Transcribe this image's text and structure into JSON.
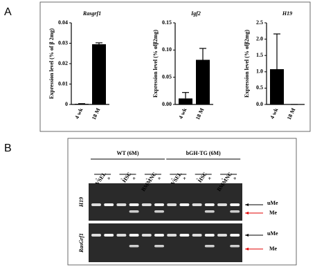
{
  "panel_a": {
    "label": "A"
  },
  "chart_data": [
    {
      "type": "bar",
      "title": "Rasgrf1",
      "y_label": "Expression level (% of  β 2mg)",
      "categories": [
        "4 wk",
        "18 M"
      ],
      "values": [
        0.0003,
        0.0295
      ],
      "errors": [
        0.0001,
        0.0007
      ],
      "color": "#000000",
      "ylim": [
        0,
        0.04
      ],
      "yticks": [
        0,
        0.01,
        0.02,
        0.03,
        0.04
      ]
    },
    {
      "type": "bar",
      "title": "Igf2",
      "y_label": "Expression level (% ofβ2mg)",
      "categories": [
        "4 wk",
        "18 M"
      ],
      "values": [
        0.011,
        0.082
      ],
      "errors": [
        0.011,
        0.021
      ],
      "color": "#000000",
      "ylim": [
        0,
        0.15
      ],
      "yticks": [
        {
          "value": 0,
          "label": "0.00"
        },
        {
          "value": 0.05,
          "label": "0.05"
        },
        {
          "value": 0.1,
          "label": "0.10"
        },
        {
          "value": 0.15,
          "label": "0.15"
        }
      ]
    },
    {
      "type": "bar",
      "title": "H19",
      "y_label": "Expression level (% ofβ2mg)",
      "categories": [
        "4 wk",
        "18 M"
      ],
      "values": [
        1.08,
        0
      ],
      "errors": [
        1.08,
        0
      ],
      "color": "#000000",
      "ylim": [
        0,
        2.5
      ],
      "yticks": [
        {
          "value": 0,
          "label": "0.0"
        },
        {
          "value": 0.5,
          "label": "0.5"
        },
        {
          "value": 1,
          "label": "1.0"
        },
        {
          "value": 1.5,
          "label": "1.5"
        },
        {
          "value": 2,
          "label": "2.0"
        },
        {
          "value": 2.5,
          "label": "2.5"
        }
      ]
    }
  ],
  "panel_b": {
    "label": "B",
    "groups": [
      "WT (6M)",
      "bGH-TG (6M)"
    ],
    "lanes": [
      "VSEL",
      "HSC",
      "BMMNC",
      "VSEL",
      "HSC",
      "BMMNC"
    ],
    "treatment": [
      "-",
      "+",
      "-",
      "+",
      "-",
      "+",
      "-",
      "+",
      "-",
      "+",
      "-",
      "+"
    ],
    "gels": [
      {
        "name": "H19",
        "upper": "uMe",
        "lower": "Me"
      },
      {
        "name": "RasGrf1",
        "upper": "uMe",
        "lower": "Me"
      }
    ]
  }
}
